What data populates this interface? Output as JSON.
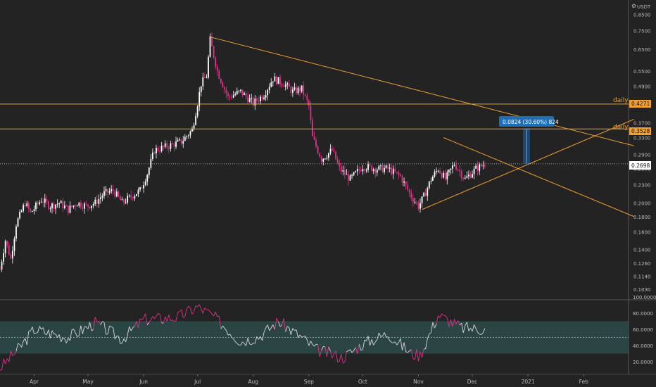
{
  "colors": {
    "background": "#232323",
    "up": "#ffffff",
    "down": "#e0308a",
    "trendline": "#f0a030",
    "level_line": "#f0a030",
    "measure": "#1e6fb8",
    "rsi_line": "#d8d8d8",
    "rsi_band": "#2f5252",
    "axis_text": "#bbbbbb"
  },
  "price_axis": {
    "currency": "USDT",
    "scale": "log",
    "ticks": [
      "0.8500",
      "0.7500",
      "0.6500",
      "0.5500",
      "0.4900",
      "0.4300",
      "0.3700",
      "0.3300",
      "0.2900",
      "0.2600",
      "0.2300",
      "0.2000",
      "0.1800",
      "0.1600",
      "0.1400",
      "0.1260",
      "0.1140",
      "0.1030"
    ],
    "current_price": "0.2698"
  },
  "levels": [
    {
      "value": "0.4271",
      "label": "daily"
    },
    {
      "value": "0.3528",
      "label": "daily"
    }
  ],
  "measure": {
    "label": "0.0824 (30.60%) 824",
    "from": 0.27,
    "to": 0.3528
  },
  "rsi_axis": {
    "ticks": [
      "100.0000",
      "80.0000",
      "60.0000",
      "40.0000",
      "20.0000"
    ],
    "band": [
      30,
      70
    ],
    "midline": 50
  },
  "time_axis": {
    "ticks": [
      "Apr",
      "May",
      "Jun",
      "Jul",
      "Aug",
      "Sep",
      "Oct",
      "Nov",
      "Dec",
      "2021",
      "Feb"
    ]
  },
  "chart_data": {
    "type": "candlestick",
    "price_scale": "log",
    "ylim": [
      0.095,
      0.95
    ],
    "x_range": [
      "2020-03-13",
      "2021-02-26"
    ],
    "price_path": [
      [
        "2020-03-13",
        0.12
      ],
      [
        "2020-03-16",
        0.15
      ],
      [
        "2020-03-19",
        0.13
      ],
      [
        "2020-03-22",
        0.17
      ],
      [
        "2020-03-27",
        0.2
      ],
      [
        "2020-03-30",
        0.185
      ],
      [
        "2020-04-05",
        0.205
      ],
      [
        "2020-04-10",
        0.195
      ],
      [
        "2020-04-15",
        0.2
      ],
      [
        "2020-04-20",
        0.19
      ],
      [
        "2020-04-25",
        0.2
      ],
      [
        "2020-04-30",
        0.195
      ],
      [
        "2020-05-05",
        0.2
      ],
      [
        "2020-05-10",
        0.215
      ],
      [
        "2020-05-15",
        0.22
      ],
      [
        "2020-05-20",
        0.2
      ],
      [
        "2020-05-25",
        0.21
      ],
      [
        "2020-05-30",
        0.22
      ],
      [
        "2020-06-03",
        0.25
      ],
      [
        "2020-06-07",
        0.3
      ],
      [
        "2020-06-15",
        0.31
      ],
      [
        "2020-06-22",
        0.32
      ],
      [
        "2020-06-28",
        0.35
      ],
      [
        "2020-07-01",
        0.43
      ],
      [
        "2020-07-03",
        0.5
      ],
      [
        "2020-07-06",
        0.53
      ],
      [
        "2020-07-08",
        0.7
      ],
      [
        "2020-07-12",
        0.55
      ],
      [
        "2020-07-18",
        0.45
      ],
      [
        "2020-07-25",
        0.47
      ],
      [
        "2020-08-01",
        0.43
      ],
      [
        "2020-08-07",
        0.46
      ],
      [
        "2020-08-12",
        0.52
      ],
      [
        "2020-08-18",
        0.5
      ],
      [
        "2020-08-23",
        0.47
      ],
      [
        "2020-08-28",
        0.48
      ],
      [
        "2020-09-01",
        0.42
      ],
      [
        "2020-09-03",
        0.33
      ],
      [
        "2020-09-08",
        0.28
      ],
      [
        "2020-09-14",
        0.3
      ],
      [
        "2020-09-18",
        0.26
      ],
      [
        "2020-09-24",
        0.24
      ],
      [
        "2020-10-01",
        0.265
      ],
      [
        "2020-10-08",
        0.26
      ],
      [
        "2020-10-15",
        0.26
      ],
      [
        "2020-10-22",
        0.245
      ],
      [
        "2020-10-28",
        0.21
      ],
      [
        "2020-11-01",
        0.195
      ],
      [
        "2020-11-04",
        0.21
      ],
      [
        "2020-11-08",
        0.24
      ],
      [
        "2020-11-12",
        0.26
      ],
      [
        "2020-11-16",
        0.24
      ],
      [
        "2020-11-21",
        0.27
      ],
      [
        "2020-11-27",
        0.24
      ],
      [
        "2020-12-03",
        0.26
      ],
      [
        "2020-12-08",
        0.27
      ]
    ],
    "horizontal_levels": [
      0.4271,
      0.3528
    ],
    "trendlines": [
      {
        "from": [
          "2020-07-08",
          0.715
        ],
        "to": [
          "2021-03-01",
          0.31
        ]
      },
      {
        "from": [
          "2020-11-03",
          0.19
        ],
        "to": [
          "2021-03-01",
          0.38
        ]
      },
      {
        "from": [
          "2020-11-15",
          0.33
        ],
        "to": [
          "2021-03-01",
          0.18
        ]
      }
    ],
    "rsi": [
      [
        "2020-03-13",
        12
      ],
      [
        "2020-03-25",
        40
      ],
      [
        "2020-04-01",
        60
      ],
      [
        "2020-04-20",
        50
      ],
      [
        "2020-05-05",
        68
      ],
      [
        "2020-05-20",
        48
      ],
      [
        "2020-06-01",
        72
      ],
      [
        "2020-06-20",
        75
      ],
      [
        "2020-07-01",
        88
      ],
      [
        "2020-07-10",
        76
      ],
      [
        "2020-07-25",
        45
      ],
      [
        "2020-08-05",
        52
      ],
      [
        "2020-08-15",
        70
      ],
      [
        "2020-08-28",
        50
      ],
      [
        "2020-09-05",
        35
      ],
      [
        "2020-09-20",
        25
      ],
      [
        "2020-10-01",
        42
      ],
      [
        "2020-10-15",
        55
      ],
      [
        "2020-10-28",
        30
      ],
      [
        "2020-11-02",
        28
      ],
      [
        "2020-11-12",
        78
      ],
      [
        "2020-11-25",
        62
      ],
      [
        "2020-12-08",
        60
      ]
    ]
  }
}
